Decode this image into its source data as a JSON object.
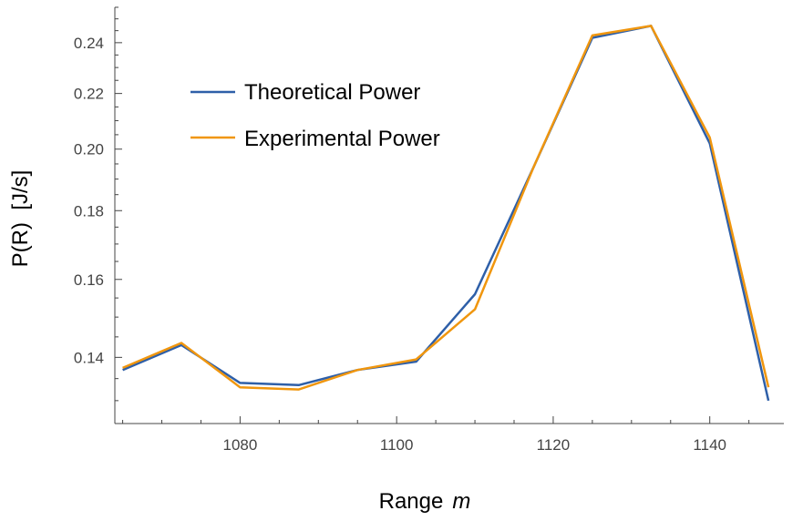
{
  "chart_data": {
    "type": "line",
    "title": "",
    "xlabel": "Range",
    "xlabel_unit": "m",
    "ylabel": "P(R)  [J/s]",
    "y_scale": "log",
    "xlim": [
      1064,
      1149
    ],
    "ylim": [
      0.125,
      0.255
    ],
    "x_ticks": [
      1080,
      1100,
      1120,
      1140
    ],
    "y_ticks": [
      0.14,
      0.16,
      0.18,
      0.2,
      0.22,
      0.24
    ],
    "y_tick_labels": [
      "0.14",
      "0.16",
      "0.18",
      "0.20",
      "0.22",
      "0.24"
    ],
    "x_tick_labels": [
      "1080",
      "1100",
      "1120",
      "1140"
    ],
    "legend_position": "top-left",
    "grid": false,
    "series": [
      {
        "name": "Theoretical Power",
        "color": "#2e5fa8",
        "x": [
          1065,
          1072.5,
          1080,
          1087.5,
          1095,
          1102.5,
          1110,
          1117.5,
          1125,
          1132.5,
          1140,
          1147.5
        ],
        "y": [
          0.137,
          0.143,
          0.134,
          0.1335,
          0.137,
          0.139,
          0.156,
          0.194,
          0.242,
          0.247,
          0.202,
          0.13
        ]
      },
      {
        "name": "Experimental Power",
        "color": "#f0960e",
        "x": [
          1065,
          1072.5,
          1080,
          1087.5,
          1095,
          1102.5,
          1110,
          1117.5,
          1125,
          1132.5,
          1140,
          1147.5
        ],
        "y": [
          0.1375,
          0.1435,
          0.133,
          0.1325,
          0.137,
          0.1395,
          0.152,
          0.194,
          0.243,
          0.247,
          0.204,
          0.133
        ]
      }
    ]
  }
}
